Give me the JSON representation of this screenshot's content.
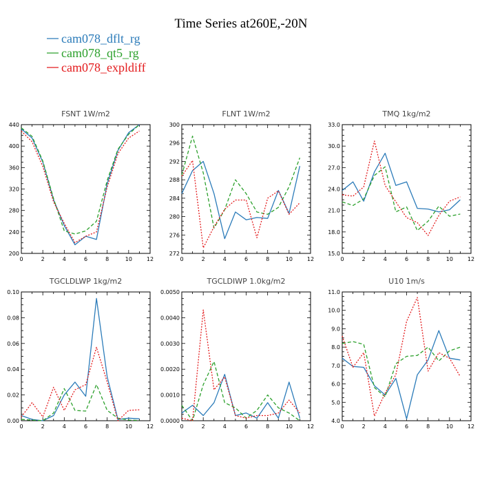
{
  "title": "Time Series at260E,-20N",
  "colors": {
    "dflt": "#2b7bb9",
    "qt5": "#2ca02c",
    "expl": "#e31a1c"
  },
  "legend": [
    {
      "label": "cam078_dflt_rg",
      "color": "#2b7bb9"
    },
    {
      "label": "cam078_qt5_rg",
      "color": "#2ca02c"
    },
    {
      "label": "cam078_expldiff",
      "color": "#e31a1c"
    }
  ],
  "chart_data": [
    {
      "type": "line",
      "title": "FSNT   1W/m2",
      "x": [
        0,
        1,
        2,
        3,
        4,
        5,
        6,
        7,
        8,
        9,
        10,
        11
      ],
      "xlim": [
        0,
        12
      ],
      "xticks": [
        "0",
        "2",
        "4",
        "6",
        "8",
        "10",
        "12"
      ],
      "ylim": [
        200,
        440
      ],
      "yticks": [
        "200",
        "240",
        "280",
        "320",
        "360",
        "400",
        "440"
      ],
      "series": [
        {
          "name": "cam078_dflt_rg",
          "values": [
            432,
            415,
            370,
            300,
            252,
            216,
            232,
            226,
            330,
            392,
            425,
            440
          ]
        },
        {
          "name": "cam078_qt5_rg",
          "values": [
            434,
            418,
            372,
            302,
            242,
            236,
            242,
            260,
            336,
            394,
            422,
            440
          ]
        },
        {
          "name": "cam078_expldiff",
          "values": [
            428,
            408,
            362,
            296,
            256,
            220,
            232,
            240,
            324,
            386,
            415,
            428
          ]
        }
      ]
    },
    {
      "type": "line",
      "title": "FLNT   1W/m2",
      "x": [
        0,
        1,
        2,
        3,
        4,
        5,
        6,
        7,
        8,
        9,
        10,
        11
      ],
      "xlim": [
        0,
        12
      ],
      "xticks": [
        "0",
        "2",
        "4",
        "6",
        "8",
        "10",
        "12"
      ],
      "ylim": [
        272,
        300
      ],
      "yticks": [
        "272",
        "276",
        "280",
        "284",
        "288",
        "292",
        "296",
        "300"
      ],
      "series": [
        {
          "name": "cam078_dflt_rg",
          "values": [
            285,
            290,
            292,
            285,
            275.2,
            281,
            279.3,
            279.8,
            279.6,
            285.7,
            280.7,
            291
          ]
        },
        {
          "name": "cam078_qt5_rg",
          "values": [
            289,
            297.5,
            289.5,
            277.5,
            281.5,
            288,
            285,
            281,
            280.5,
            282,
            286.5,
            292.8
          ]
        },
        {
          "name": "cam078_expldiff",
          "values": [
            288.8,
            292.2,
            273.2,
            277.8,
            281.6,
            283.6,
            283.6,
            275.4,
            284,
            285.6,
            280.5,
            283
          ]
        }
      ]
    },
    {
      "type": "line",
      "title": "TMQ   1kg/m2",
      "x": [
        0,
        1,
        2,
        3,
        4,
        5,
        6,
        7,
        8,
        9,
        10,
        11
      ],
      "xlim": [
        0,
        12
      ],
      "xticks": [
        "0",
        "2",
        "4",
        "6",
        "8",
        "10",
        "12"
      ],
      "ylim": [
        15,
        33
      ],
      "yticks": [
        "15.0",
        "18.0",
        "21.0",
        "24.0",
        "27.0",
        "30.0",
        "33.0"
      ],
      "series": [
        {
          "name": "cam078_dflt_rg",
          "values": [
            23.8,
            25,
            22.3,
            26.4,
            29,
            24.5,
            25,
            21.3,
            21.2,
            20.8,
            21.1,
            22.5
          ]
        },
        {
          "name": "cam078_qt5_rg",
          "values": [
            22.2,
            21.7,
            22.6,
            25.9,
            27.1,
            20.8,
            21.5,
            18.2,
            19.5,
            21.6,
            20.2,
            20.5
          ]
        },
        {
          "name": "cam078_expldiff",
          "values": [
            23.2,
            23,
            24.3,
            30.7,
            24.5,
            22.2,
            20,
            19.3,
            17.5,
            20.3,
            22.3,
            22.9
          ]
        }
      ]
    },
    {
      "type": "line",
      "title": "TGCLDLWP   1kg/m2",
      "x": [
        0,
        1,
        2,
        3,
        4,
        5,
        6,
        7,
        8,
        9,
        10,
        11
      ],
      "xlim": [
        0,
        12
      ],
      "xticks": [
        "0",
        "2",
        "4",
        "6",
        "8",
        "10",
        "12"
      ],
      "ylim": [
        0,
        0.1
      ],
      "yticks": [
        "0.00",
        "0.02",
        "0.04",
        "0.06",
        "0.08",
        "0.10"
      ],
      "series": [
        {
          "name": "cam078_dflt_rg",
          "values": [
            0.004,
            0.001,
            0,
            0.004,
            0.02,
            0.03,
            0.019,
            0.095,
            0.034,
            0.001,
            0.002,
            0.0015
          ]
        },
        {
          "name": "cam078_qt5_rg",
          "values": [
            0.001,
            0.0005,
            0,
            0.006,
            0.025,
            0.008,
            0.0075,
            0.028,
            0.008,
            0.002,
            0.0005,
            0.0002
          ]
        },
        {
          "name": "cam078_expldiff",
          "values": [
            0.003,
            0.014,
            0.003,
            0.026,
            0.008,
            0.024,
            0.028,
            0.057,
            0.03,
            0,
            0.008,
            0.0085
          ]
        }
      ]
    },
    {
      "type": "line",
      "title": "TGCLDIWP   1.0kg/m2",
      "x": [
        0,
        1,
        2,
        3,
        4,
        5,
        6,
        7,
        8,
        9,
        10,
        11
      ],
      "xlim": [
        0,
        12
      ],
      "xticks": [
        "0",
        "2",
        "4",
        "6",
        "8",
        "10",
        "12"
      ],
      "ylim": [
        0,
        0.005
      ],
      "yticks": [
        "0.0000",
        "0.0010",
        "0.0020",
        "0.0030",
        "0.0040",
        "0.0050"
      ],
      "series": [
        {
          "name": "cam078_dflt_rg",
          "values": [
            0.0003,
            0.0006,
            0.0002,
            0.0007,
            0.0018,
            0.0002,
            0.0003,
            0.0001,
            0.0007,
            0.0001,
            0.0015,
            0.0001
          ]
        },
        {
          "name": "cam078_qt5_rg",
          "values": [
            0.0006,
            0,
            0.0014,
            0.0023,
            0.0007,
            0.0005,
            0.0001,
            0.0004,
            0.001,
            0.0005,
            0.0003,
            0
          ]
        },
        {
          "name": "cam078_expldiff",
          "values": [
            0.0001,
            0,
            0.0043,
            0.0012,
            0.0017,
            0.0002,
            0.0001,
            0.0002,
            0.0002,
            0.0003,
            0.0008,
            0.0003
          ]
        }
      ]
    },
    {
      "type": "line",
      "title": "U10   1m/s",
      "x": [
        0,
        1,
        2,
        3,
        4,
        5,
        6,
        7,
        8,
        9,
        10,
        11
      ],
      "xlim": [
        0,
        12
      ],
      "xticks": [
        "0",
        "2",
        "4",
        "6",
        "8",
        "10",
        "12"
      ],
      "ylim": [
        4,
        11
      ],
      "yticks": [
        "4.0",
        "5.0",
        "6.0",
        "7.0",
        "8.0",
        "9.0",
        "10.0",
        "11.0"
      ],
      "series": [
        {
          "name": "cam078_dflt_rg",
          "values": [
            7.4,
            6.95,
            6.9,
            5.9,
            5.4,
            6.3,
            4.1,
            6.5,
            7.3,
            8.9,
            7.4,
            7.3
          ]
        },
        {
          "name": "cam078_qt5_rg",
          "values": [
            8.2,
            8.3,
            8.15,
            5.8,
            5.3,
            7.1,
            7.5,
            7.55,
            8,
            7.25,
            7.8,
            8
          ]
        },
        {
          "name": "cam078_expldiff",
          "values": [
            8.6,
            6.9,
            7.7,
            4.25,
            5.5,
            6.5,
            9.4,
            10.7,
            6.7,
            7.7,
            7.4,
            6.4
          ]
        }
      ]
    }
  ]
}
